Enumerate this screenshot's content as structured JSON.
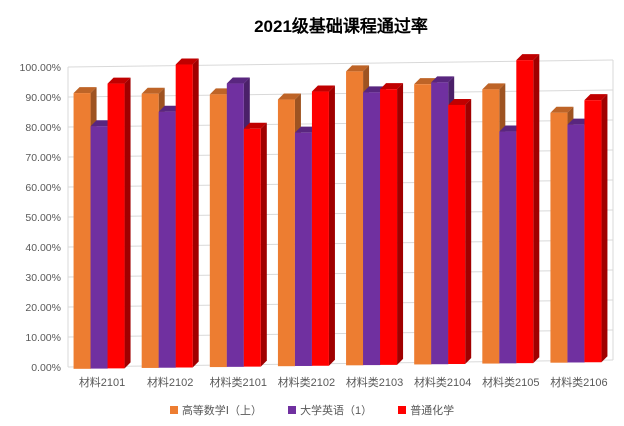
{
  "title": "2021级基础课程通过率",
  "chart_data": {
    "type": "bar",
    "style": "3d-clustered-column",
    "title": "2021级基础课程通过率",
    "categories": [
      "材料2101",
      "材料2102",
      "材料类2101",
      "材料类2102",
      "材料类2103",
      "材料类2104",
      "材料类2105",
      "材料类2106"
    ],
    "series": [
      {
        "name": "高等数学Ⅰ（上）",
        "color": "#ED7D31",
        "color_top": "#BE6427",
        "color_side": "#9E5321",
        "values": [
          91,
          90.5,
          90,
          88,
          97,
          92.5,
          90.5,
          82.5
        ]
      },
      {
        "name": "大学英语（1）",
        "color": "#7030A0",
        "color_top": "#59267F",
        "color_side": "#4B2069",
        "values": [
          80,
          84.5,
          93.5,
          77,
          90,
          93,
          76.5,
          78.5
        ]
      },
      {
        "name": "普通化学",
        "color": "#FF0000",
        "color_top": "#C00000",
        "color_side": "#A00000",
        "values": [
          94,
          100,
          78.5,
          90.5,
          91,
          85.5,
          100,
          86.5
        ]
      }
    ],
    "ylim": [
      0,
      100
    ],
    "y_ticks": [
      "100.00%",
      "90.00%",
      "80.00%",
      "70.00%",
      "60.00%",
      "50.00%",
      "40.00%",
      "30.00%",
      "20.00%",
      "10.00%",
      "0.00%"
    ],
    "grid": true,
    "legend_position": "bottom",
    "axis_label_color": "#595959",
    "grid_color": "#D9D9D9",
    "background_color": "#FFFFFF"
  }
}
